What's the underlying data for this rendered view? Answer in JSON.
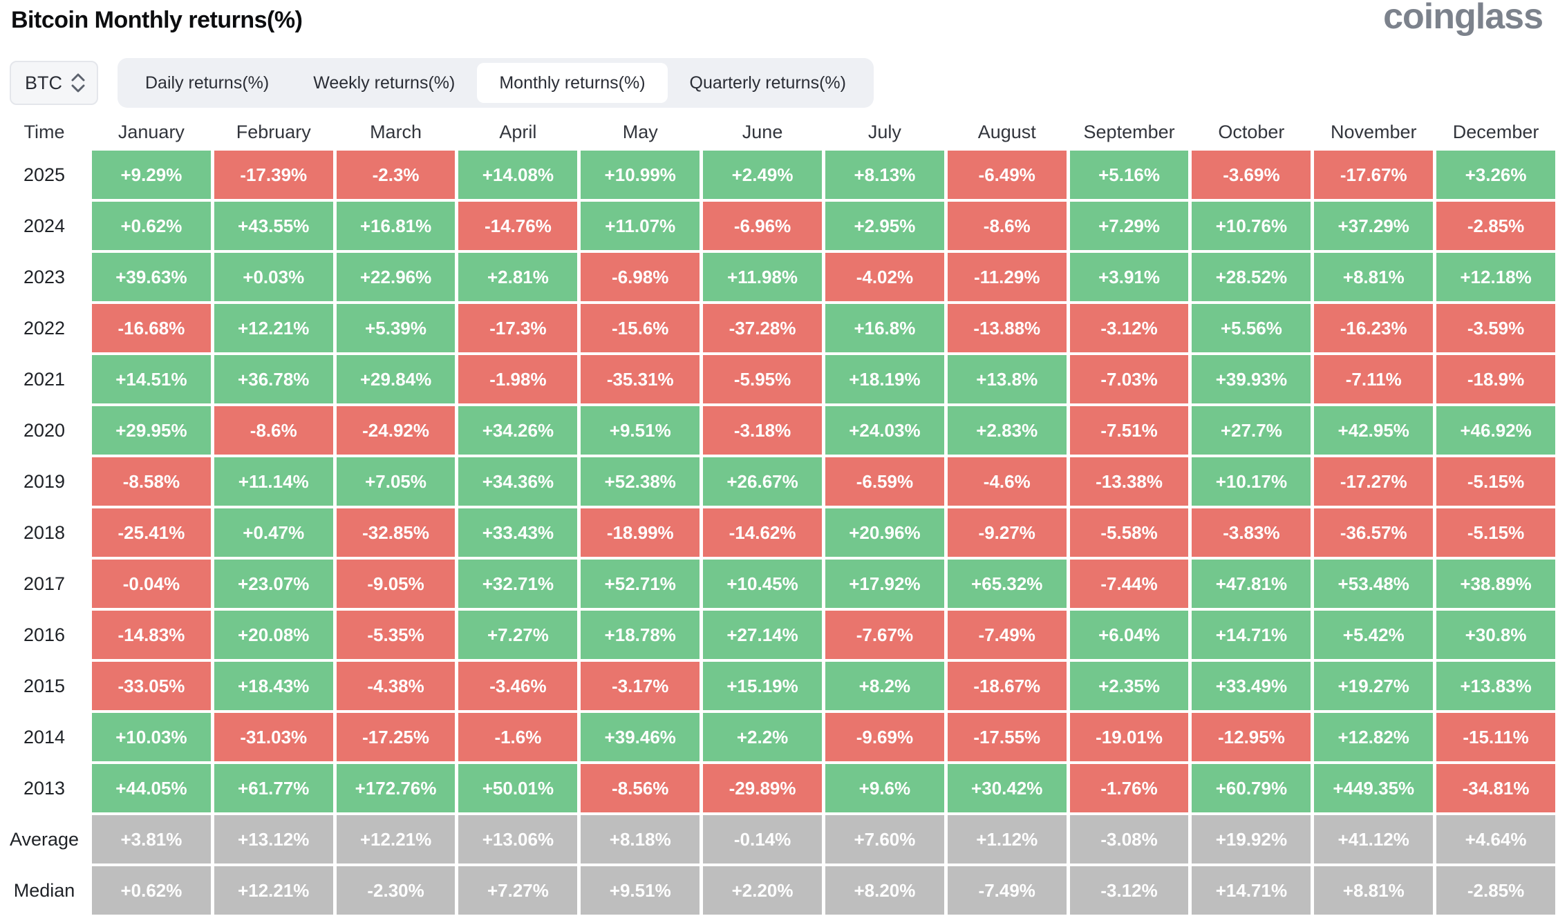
{
  "page": {
    "title": "Bitcoin Monthly returns(%)",
    "logo": "coinglass"
  },
  "controls": {
    "symbol": "BTC",
    "tabs": [
      {
        "label": "Daily returns(%)",
        "selected": false
      },
      {
        "label": "Weekly returns(%)",
        "selected": false
      },
      {
        "label": "Monthly returns(%)",
        "selected": true
      },
      {
        "label": "Quarterly returns(%)",
        "selected": false
      }
    ]
  },
  "colors": {
    "positive": "#73c78d",
    "negative": "#e9756d",
    "neutral": "#bebebe"
  },
  "chart_data": {
    "type": "table",
    "title": "Bitcoin Monthly returns(%)",
    "time_header": "Time",
    "months": [
      "January",
      "February",
      "March",
      "April",
      "May",
      "June",
      "July",
      "August",
      "September",
      "October",
      "November",
      "December"
    ],
    "rows": [
      {
        "label": "2025",
        "type": "year",
        "values": [
          "+9.29%",
          "-17.39%",
          "-2.3%",
          "+14.08%",
          "+10.99%",
          "+2.49%",
          "+8.13%",
          "-6.49%",
          "+5.16%",
          "-3.69%",
          "-17.67%",
          "+3.26%"
        ]
      },
      {
        "label": "2024",
        "type": "year",
        "values": [
          "+0.62%",
          "+43.55%",
          "+16.81%",
          "-14.76%",
          "+11.07%",
          "-6.96%",
          "+2.95%",
          "-8.6%",
          "+7.29%",
          "+10.76%",
          "+37.29%",
          "-2.85%"
        ]
      },
      {
        "label": "2023",
        "type": "year",
        "values": [
          "+39.63%",
          "+0.03%",
          "+22.96%",
          "+2.81%",
          "-6.98%",
          "+11.98%",
          "-4.02%",
          "-11.29%",
          "+3.91%",
          "+28.52%",
          "+8.81%",
          "+12.18%"
        ]
      },
      {
        "label": "2022",
        "type": "year",
        "values": [
          "-16.68%",
          "+12.21%",
          "+5.39%",
          "-17.3%",
          "-15.6%",
          "-37.28%",
          "+16.8%",
          "-13.88%",
          "-3.12%",
          "+5.56%",
          "-16.23%",
          "-3.59%"
        ]
      },
      {
        "label": "2021",
        "type": "year",
        "values": [
          "+14.51%",
          "+36.78%",
          "+29.84%",
          "-1.98%",
          "-35.31%",
          "-5.95%",
          "+18.19%",
          "+13.8%",
          "-7.03%",
          "+39.93%",
          "-7.11%",
          "-18.9%"
        ]
      },
      {
        "label": "2020",
        "type": "year",
        "values": [
          "+29.95%",
          "-8.6%",
          "-24.92%",
          "+34.26%",
          "+9.51%",
          "-3.18%",
          "+24.03%",
          "+2.83%",
          "-7.51%",
          "+27.7%",
          "+42.95%",
          "+46.92%"
        ]
      },
      {
        "label": "2019",
        "type": "year",
        "values": [
          "-8.58%",
          "+11.14%",
          "+7.05%",
          "+34.36%",
          "+52.38%",
          "+26.67%",
          "-6.59%",
          "-4.6%",
          "-13.38%",
          "+10.17%",
          "-17.27%",
          "-5.15%"
        ]
      },
      {
        "label": "2018",
        "type": "year",
        "values": [
          "-25.41%",
          "+0.47%",
          "-32.85%",
          "+33.43%",
          "-18.99%",
          "-14.62%",
          "+20.96%",
          "-9.27%",
          "-5.58%",
          "-3.83%",
          "-36.57%",
          "-5.15%"
        ]
      },
      {
        "label": "2017",
        "type": "year",
        "values": [
          "-0.04%",
          "+23.07%",
          "-9.05%",
          "+32.71%",
          "+52.71%",
          "+10.45%",
          "+17.92%",
          "+65.32%",
          "-7.44%",
          "+47.81%",
          "+53.48%",
          "+38.89%"
        ]
      },
      {
        "label": "2016",
        "type": "year",
        "values": [
          "-14.83%",
          "+20.08%",
          "-5.35%",
          "+7.27%",
          "+18.78%",
          "+27.14%",
          "-7.67%",
          "-7.49%",
          "+6.04%",
          "+14.71%",
          "+5.42%",
          "+30.8%"
        ]
      },
      {
        "label": "2015",
        "type": "year",
        "values": [
          "-33.05%",
          "+18.43%",
          "-4.38%",
          "-3.46%",
          "-3.17%",
          "+15.19%",
          "+8.2%",
          "-18.67%",
          "+2.35%",
          "+33.49%",
          "+19.27%",
          "+13.83%"
        ]
      },
      {
        "label": "2014",
        "type": "year",
        "values": [
          "+10.03%",
          "-31.03%",
          "-17.25%",
          "-1.6%",
          "+39.46%",
          "+2.2%",
          "-9.69%",
          "-17.55%",
          "-19.01%",
          "-12.95%",
          "+12.82%",
          "-15.11%"
        ]
      },
      {
        "label": "2013",
        "type": "year",
        "values": [
          "+44.05%",
          "+61.77%",
          "+172.76%",
          "+50.01%",
          "-8.56%",
          "-29.89%",
          "+9.6%",
          "+30.42%",
          "-1.76%",
          "+60.79%",
          "+449.35%",
          "-34.81%"
        ]
      },
      {
        "label": "Average",
        "type": "stat",
        "values": [
          "+3.81%",
          "+13.12%",
          "+12.21%",
          "+13.06%",
          "+8.18%",
          "-0.14%",
          "+7.60%",
          "+1.12%",
          "-3.08%",
          "+19.92%",
          "+41.12%",
          "+4.64%"
        ]
      },
      {
        "label": "Median",
        "type": "stat",
        "values": [
          "+0.62%",
          "+12.21%",
          "-2.30%",
          "+7.27%",
          "+9.51%",
          "+2.20%",
          "+8.20%",
          "-7.49%",
          "-3.12%",
          "+14.71%",
          "+8.81%",
          "-2.85%"
        ]
      }
    ]
  }
}
